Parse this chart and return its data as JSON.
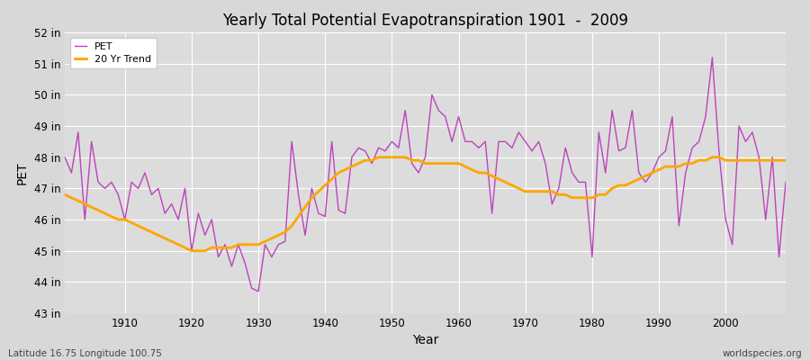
{
  "title": "Yearly Total Potential Evapotranspiration 1901  -  2009",
  "xlabel": "Year",
  "ylabel": "PET",
  "subtitle_left": "Latitude 16.75 Longitude 100.75",
  "subtitle_right": "worldspecies.org",
  "pet_color": "#bb44bb",
  "trend_color": "#ffa500",
  "fig_bg_color": "#d8d8d8",
  "plot_bg_color": "#dcdcdc",
  "grid_color": "#ffffff",
  "ylim": [
    43,
    52
  ],
  "yticks": [
    43,
    44,
    45,
    46,
    47,
    48,
    49,
    50,
    51,
    52
  ],
  "ytick_labels": [
    "43 in",
    "44 in",
    "45 in",
    "46 in",
    "47 in",
    "48 in",
    "49 in",
    "50 in",
    "51 in",
    "52 in"
  ],
  "xlim": [
    1901,
    2009
  ],
  "xticks": [
    1910,
    1920,
    1930,
    1940,
    1950,
    1960,
    1970,
    1980,
    1990,
    2000
  ],
  "years": [
    1901,
    1902,
    1903,
    1904,
    1905,
    1906,
    1907,
    1908,
    1909,
    1910,
    1911,
    1912,
    1913,
    1914,
    1915,
    1916,
    1917,
    1918,
    1919,
    1920,
    1921,
    1922,
    1923,
    1924,
    1925,
    1926,
    1927,
    1928,
    1929,
    1930,
    1931,
    1932,
    1933,
    1934,
    1935,
    1936,
    1937,
    1938,
    1939,
    1940,
    1941,
    1942,
    1943,
    1944,
    1945,
    1946,
    1947,
    1948,
    1949,
    1950,
    1951,
    1952,
    1953,
    1954,
    1955,
    1956,
    1957,
    1958,
    1959,
    1960,
    1961,
    1962,
    1963,
    1964,
    1965,
    1966,
    1967,
    1968,
    1969,
    1970,
    1971,
    1972,
    1973,
    1974,
    1975,
    1976,
    1977,
    1978,
    1979,
    1980,
    1981,
    1982,
    1983,
    1984,
    1985,
    1986,
    1987,
    1988,
    1989,
    1990,
    1991,
    1992,
    1993,
    1994,
    1995,
    1996,
    1997,
    1998,
    1999,
    2000,
    2001,
    2002,
    2003,
    2004,
    2005,
    2006,
    2007,
    2008,
    2009
  ],
  "pet_values": [
    48.0,
    47.5,
    48.8,
    46.0,
    48.5,
    47.2,
    47.0,
    47.2,
    46.8,
    46.0,
    47.2,
    47.0,
    47.5,
    46.8,
    47.0,
    46.2,
    46.5,
    46.0,
    47.0,
    45.0,
    46.2,
    45.5,
    46.0,
    44.8,
    45.2,
    44.5,
    45.2,
    44.6,
    43.8,
    43.7,
    45.2,
    44.8,
    45.2,
    45.3,
    48.5,
    46.8,
    45.5,
    47.0,
    46.2,
    46.1,
    48.5,
    46.3,
    46.2,
    48.0,
    48.3,
    48.2,
    47.8,
    48.3,
    48.2,
    48.5,
    48.3,
    49.5,
    47.8,
    47.5,
    48.0,
    50.0,
    49.5,
    49.3,
    48.5,
    49.3,
    48.5,
    48.5,
    48.3,
    48.5,
    46.2,
    48.5,
    48.5,
    48.3,
    48.8,
    48.5,
    48.2,
    48.5,
    47.8,
    46.5,
    47.0,
    48.3,
    47.5,
    47.2,
    47.2,
    44.8,
    48.8,
    47.5,
    49.5,
    48.2,
    48.3,
    49.5,
    47.5,
    47.2,
    47.5,
    48.0,
    48.2,
    49.3,
    45.8,
    47.5,
    48.3,
    48.5,
    49.3,
    51.2,
    48.2,
    46.0,
    45.2,
    49.0,
    48.5,
    48.8,
    48.0,
    46.0,
    48.0,
    44.8,
    47.2
  ],
  "trend_values": [
    46.8,
    46.7,
    46.6,
    46.5,
    46.4,
    46.3,
    46.2,
    46.1,
    46.0,
    46.0,
    45.9,
    45.8,
    45.7,
    45.6,
    45.5,
    45.4,
    45.3,
    45.2,
    45.1,
    45.0,
    45.0,
    45.0,
    45.1,
    45.1,
    45.1,
    45.1,
    45.2,
    45.2,
    45.2,
    45.2,
    45.3,
    45.4,
    45.5,
    45.6,
    45.8,
    46.1,
    46.4,
    46.7,
    46.9,
    47.1,
    47.3,
    47.5,
    47.6,
    47.7,
    47.8,
    47.9,
    47.9,
    48.0,
    48.0,
    48.0,
    48.0,
    48.0,
    47.9,
    47.9,
    47.8,
    47.8,
    47.8,
    47.8,
    47.8,
    47.8,
    47.7,
    47.6,
    47.5,
    47.5,
    47.4,
    47.3,
    47.2,
    47.1,
    47.0,
    46.9,
    46.9,
    46.9,
    46.9,
    46.9,
    46.8,
    46.8,
    46.7,
    46.7,
    46.7,
    46.7,
    46.8,
    46.8,
    47.0,
    47.1,
    47.1,
    47.2,
    47.3,
    47.4,
    47.5,
    47.6,
    47.7,
    47.7,
    47.7,
    47.8,
    47.8,
    47.9,
    47.9,
    48.0,
    48.0,
    47.9,
    47.9,
    47.9,
    47.9,
    47.9,
    47.9,
    47.9,
    47.9,
    47.9,
    47.9
  ]
}
